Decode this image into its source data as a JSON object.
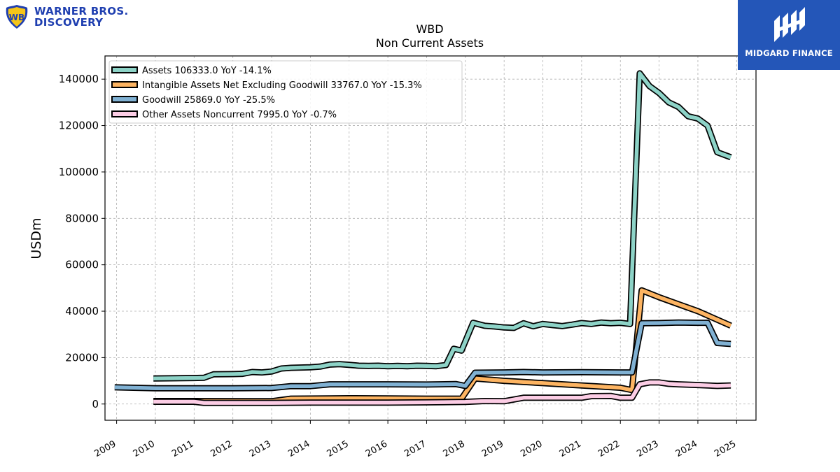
{
  "chart_data": {
    "type": "line",
    "title": "WBD",
    "subtitle": "Non Current  Assets",
    "ylabel": "USDm",
    "xlabel": "",
    "xlim": [
      2008.7,
      2025.5
    ],
    "ylim": [
      -7000,
      150000
    ],
    "yticks": [
      0,
      20000,
      40000,
      60000,
      80000,
      100000,
      120000,
      140000
    ],
    "ytick_labels": [
      "0",
      "20000",
      "40000",
      "60000",
      "80000",
      "100000",
      "120000",
      "140000"
    ],
    "xticks": [
      2009,
      2010,
      2011,
      2012,
      2013,
      2014,
      2015,
      2016,
      2017,
      2018,
      2019,
      2020,
      2021,
      2022,
      2023,
      2024,
      2025
    ],
    "xtick_labels": [
      "2009",
      "2010",
      "2011",
      "2012",
      "2013",
      "2014",
      "2015",
      "2016",
      "2017",
      "2018",
      "2019",
      "2020",
      "2021",
      "2022",
      "2023",
      "2024",
      "2025"
    ],
    "grid": true,
    "legend_position": "top-left",
    "series": [
      {
        "name": "Assets  106333.0 YoY -14.1%",
        "color": "#8dd3c7",
        "points": [
          [
            2009.95,
            11000
          ],
          [
            2011.0,
            11200
          ],
          [
            2011.25,
            11300
          ],
          [
            2011.5,
            12800
          ],
          [
            2012.0,
            12900
          ],
          [
            2012.25,
            13000
          ],
          [
            2012.5,
            13800
          ],
          [
            2012.75,
            13600
          ],
          [
            2013.0,
            14000
          ],
          [
            2013.25,
            15300
          ],
          [
            2013.5,
            15600
          ],
          [
            2014.0,
            15800
          ],
          [
            2014.25,
            16100
          ],
          [
            2014.5,
            17000
          ],
          [
            2014.75,
            17200
          ],
          [
            2015.0,
            16900
          ],
          [
            2015.25,
            16500
          ],
          [
            2015.5,
            16400
          ],
          [
            2015.75,
            16500
          ],
          [
            2016.0,
            16300
          ],
          [
            2016.25,
            16400
          ],
          [
            2016.5,
            16300
          ],
          [
            2016.75,
            16500
          ],
          [
            2017.0,
            16400
          ],
          [
            2017.25,
            16300
          ],
          [
            2017.5,
            16800
          ],
          [
            2017.7,
            23800
          ],
          [
            2017.9,
            23000
          ],
          [
            2018.2,
            35000
          ],
          [
            2018.5,
            33700
          ],
          [
            2018.75,
            33400
          ],
          [
            2019.0,
            33000
          ],
          [
            2019.25,
            32800
          ],
          [
            2019.5,
            34800
          ],
          [
            2019.75,
            33500
          ],
          [
            2020.0,
            34500
          ],
          [
            2020.25,
            34000
          ],
          [
            2020.5,
            33600
          ],
          [
            2020.75,
            34200
          ],
          [
            2021.0,
            34900
          ],
          [
            2021.25,
            34500
          ],
          [
            2021.5,
            35100
          ],
          [
            2021.75,
            34800
          ],
          [
            2022.0,
            35000
          ],
          [
            2022.25,
            34500
          ],
          [
            2022.5,
            142500
          ],
          [
            2022.75,
            137000
          ],
          [
            2023.0,
            134000
          ],
          [
            2023.25,
            130000
          ],
          [
            2023.5,
            128000
          ],
          [
            2023.75,
            124000
          ],
          [
            2024.0,
            123000
          ],
          [
            2024.25,
            120000
          ],
          [
            2024.5,
            108500
          ],
          [
            2024.85,
            106333
          ]
        ]
      },
      {
        "name": "Intangible Assets Net Excluding Goodwill  33767.0 YoY -15.3%",
        "color": "#fdb462",
        "points": [
          [
            2009.95,
            1300
          ],
          [
            2011.0,
            1300
          ],
          [
            2012.5,
            1200
          ],
          [
            2013.0,
            1200
          ],
          [
            2013.5,
            2300
          ],
          [
            2014.5,
            2400
          ],
          [
            2015.0,
            2500
          ],
          [
            2016.0,
            2400
          ],
          [
            2017.0,
            2300
          ],
          [
            2017.9,
            2300
          ],
          [
            2018.25,
            11000
          ],
          [
            2019.0,
            10000
          ],
          [
            2020.0,
            9000
          ],
          [
            2021.0,
            8000
          ],
          [
            2022.0,
            7000
          ],
          [
            2022.3,
            6000
          ],
          [
            2022.55,
            49000
          ],
          [
            2023.0,
            46000
          ],
          [
            2023.5,
            43000
          ],
          [
            2024.0,
            40000
          ],
          [
            2024.85,
            33767
          ]
        ]
      },
      {
        "name": "Goodwill  25869.0 YoY -25.5%",
        "color": "#80b1d3",
        "points": [
          [
            2008.95,
            7200
          ],
          [
            2010.0,
            6800
          ],
          [
            2011.0,
            6800
          ],
          [
            2012.0,
            6800
          ],
          [
            2013.0,
            6900
          ],
          [
            2013.5,
            7700
          ],
          [
            2014.0,
            7700
          ],
          [
            2014.5,
            8500
          ],
          [
            2015.0,
            8500
          ],
          [
            2016.0,
            8500
          ],
          [
            2017.0,
            8400
          ],
          [
            2017.75,
            8600
          ],
          [
            2018.0,
            7800
          ],
          [
            2018.25,
            13500
          ],
          [
            2019.0,
            13600
          ],
          [
            2019.5,
            13800
          ],
          [
            2020.0,
            13600
          ],
          [
            2021.0,
            13700
          ],
          [
            2022.0,
            13600
          ],
          [
            2022.3,
            13600
          ],
          [
            2022.55,
            34800
          ],
          [
            2023.0,
            34900
          ],
          [
            2023.5,
            35100
          ],
          [
            2024.0,
            35000
          ],
          [
            2024.25,
            35000
          ],
          [
            2024.5,
            26300
          ],
          [
            2024.85,
            25869
          ]
        ]
      },
      {
        "name": "Other Assets Noncurrent  7995.0 YoY -0.7%",
        "color": "#fccde5",
        "points": [
          [
            2009.95,
            1000
          ],
          [
            2011.0,
            1000
          ],
          [
            2011.25,
            500
          ],
          [
            2012.0,
            500
          ],
          [
            2013.0,
            500
          ],
          [
            2014.0,
            600
          ],
          [
            2015.0,
            600
          ],
          [
            2016.0,
            600
          ],
          [
            2017.0,
            700
          ],
          [
            2018.0,
            900
          ],
          [
            2018.5,
            1300
          ],
          [
            2019.0,
            1200
          ],
          [
            2019.5,
            2700
          ],
          [
            2020.0,
            2700
          ],
          [
            2021.0,
            2700
          ],
          [
            2021.25,
            3400
          ],
          [
            2021.75,
            3500
          ],
          [
            2022.0,
            2700
          ],
          [
            2022.3,
            2700
          ],
          [
            2022.5,
            8500
          ],
          [
            2022.75,
            9300
          ],
          [
            2023.0,
            9300
          ],
          [
            2023.25,
            8700
          ],
          [
            2023.5,
            8500
          ],
          [
            2024.0,
            8200
          ],
          [
            2024.5,
            7800
          ],
          [
            2024.85,
            7995
          ]
        ]
      }
    ]
  },
  "logos": {
    "left_line1": "WARNER BROS.",
    "left_line2": "DISCOVERY",
    "right_label": "MIDGARD FINANCE"
  }
}
